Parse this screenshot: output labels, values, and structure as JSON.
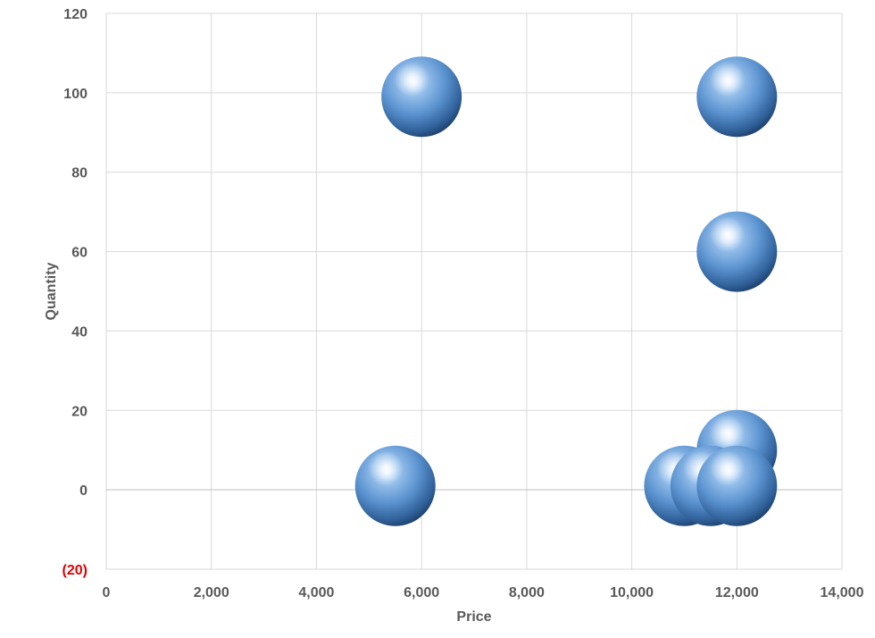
{
  "chart_data": {
    "type": "scatter",
    "subtype": "bubble-3d",
    "xlabel": "Price",
    "ylabel": "Quantity",
    "xlim": [
      0,
      14000
    ],
    "ylim": [
      -20,
      120
    ],
    "x_ticks": [
      "0",
      "2,000",
      "4,000",
      "6,000",
      "8,000",
      "10,000",
      "12,000",
      "14,000"
    ],
    "y_ticks": [
      "120",
      "100",
      "80",
      "60",
      "40",
      "20",
      "0",
      "(20)"
    ],
    "negative_tick_color": "#e00000",
    "grid": true,
    "bubble_color": "#4f86c6",
    "points": [
      {
        "x": 6000,
        "y": 99
      },
      {
        "x": 12000,
        "y": 99
      },
      {
        "x": 12000,
        "y": 60
      },
      {
        "x": 12000,
        "y": 10
      },
      {
        "x": 5500,
        "y": 1
      },
      {
        "x": 11000,
        "y": 1
      },
      {
        "x": 11500,
        "y": 1
      },
      {
        "x": 12000,
        "y": 1
      }
    ]
  }
}
